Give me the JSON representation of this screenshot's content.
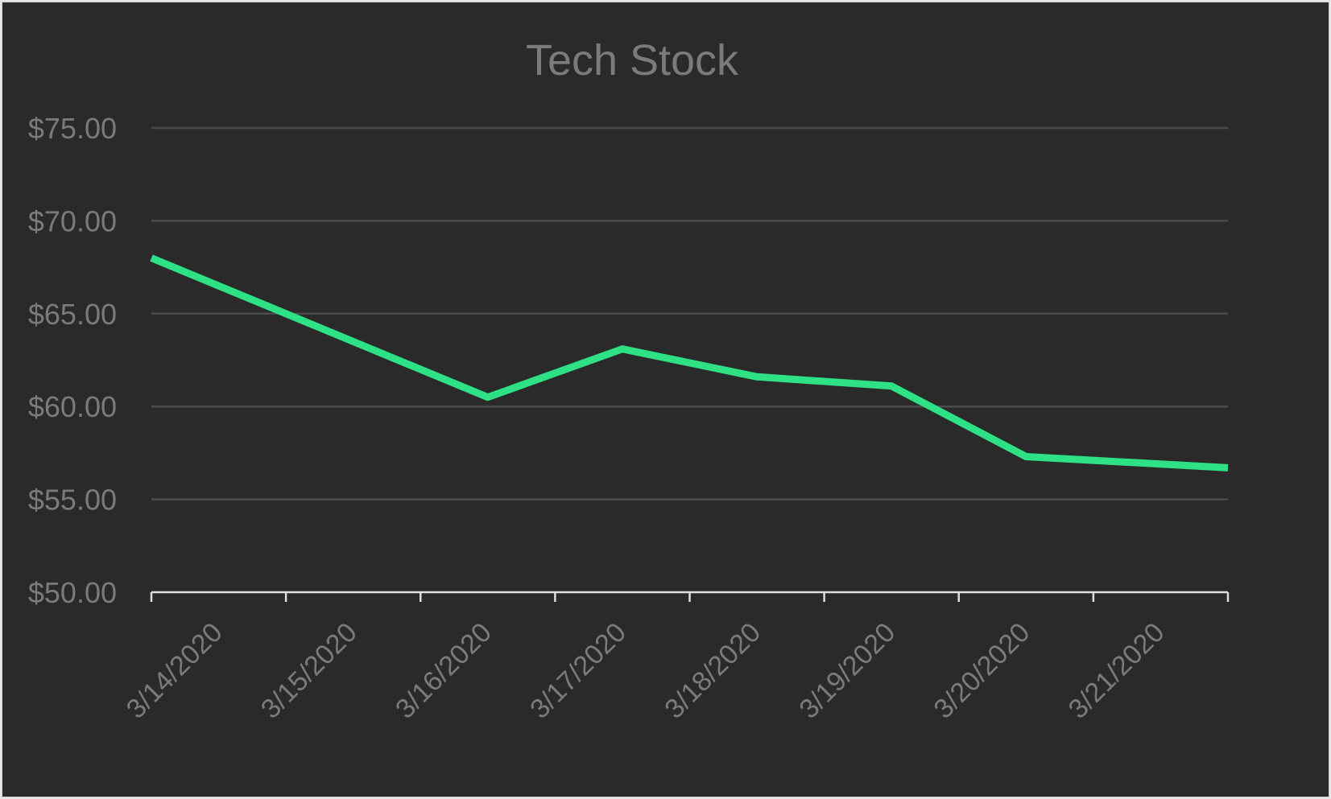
{
  "chart_data": {
    "type": "line",
    "title": "Tech Stock",
    "xlabel": "",
    "ylabel": "",
    "categories": [
      "3/14/2020",
      "3/15/2020",
      "3/16/2020",
      "3/17/2020",
      "3/18/2020",
      "3/19/2020",
      "3/20/2020",
      "3/21/2020"
    ],
    "series": [
      {
        "name": "",
        "color": "#2ee185",
        "points": [
          {
            "x": "3/14/2020 00:00",
            "y": 68.0
          },
          {
            "x": "3/16/2020 12:00",
            "y": 60.5
          },
          {
            "x": "3/17/2020 12:00",
            "y": 63.1
          },
          {
            "x": "3/18/2020 12:00",
            "y": 61.6
          },
          {
            "x": "3/19/2020 12:00",
            "y": 61.1
          },
          {
            "x": "3/20/2020 12:00",
            "y": 57.3
          },
          {
            "x": "3/22/2020 00:00",
            "y": 56.7
          }
        ]
      }
    ],
    "xlim": [
      "3/14/2020",
      "3/22/2020"
    ],
    "ylim": [
      50,
      75
    ],
    "yticks": [
      "$50.00",
      "$55.00",
      "$60.00",
      "$65.00",
      "$70.00",
      "$75.00"
    ],
    "grid": true,
    "legend": "none",
    "colors": {
      "background": "#2a2a2a",
      "text": "#7b7b7b",
      "grid": "#4b4b4b",
      "axis": "#dddddd"
    }
  }
}
